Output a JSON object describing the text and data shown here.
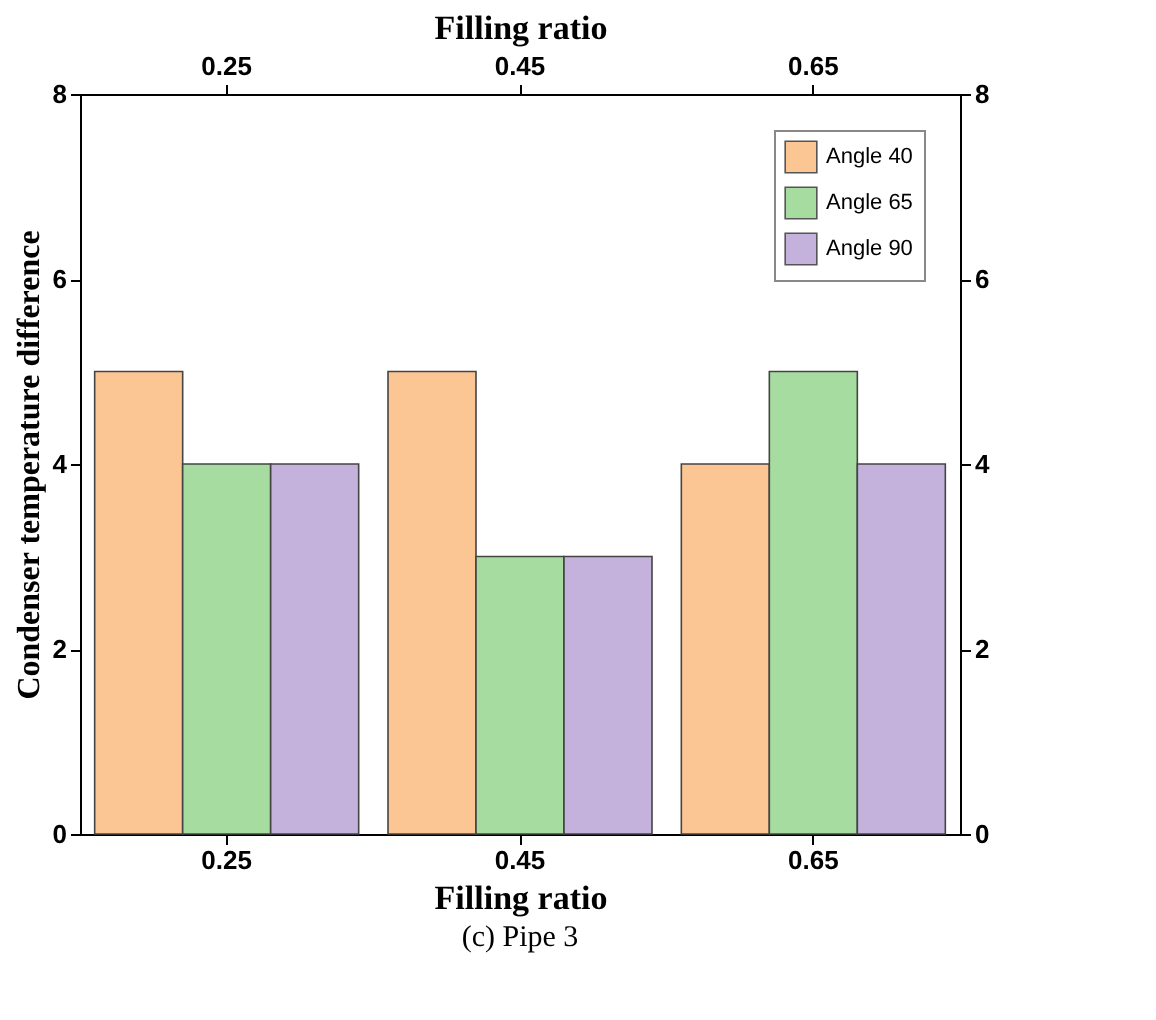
{
  "chart_data": {
    "type": "bar",
    "xlabel": "Filling ratio",
    "x2label": "Filling ratio",
    "ylabel": "Condenser temperature difference",
    "categories": [
      "0.25",
      "0.45",
      "0.65"
    ],
    "series": [
      {
        "name": "Angle 40",
        "color": "#fcc594",
        "values": [
          5,
          5,
          4
        ]
      },
      {
        "name": "Angle 65",
        "color": "#a6dca0",
        "values": [
          4,
          3,
          5
        ]
      },
      {
        "name": "Angle 90",
        "color": "#c4b2dd",
        "values": [
          4,
          3,
          4
        ]
      }
    ],
    "ylim": [
      0,
      8
    ],
    "yticks": [
      0,
      2,
      4,
      6,
      8
    ],
    "y2lim": [
      0,
      8
    ],
    "y2ticks": [
      0,
      2,
      4,
      6,
      8
    ],
    "grid": false,
    "legend": "top right",
    "annotations": [
      "(c) Pipe 3"
    ]
  }
}
